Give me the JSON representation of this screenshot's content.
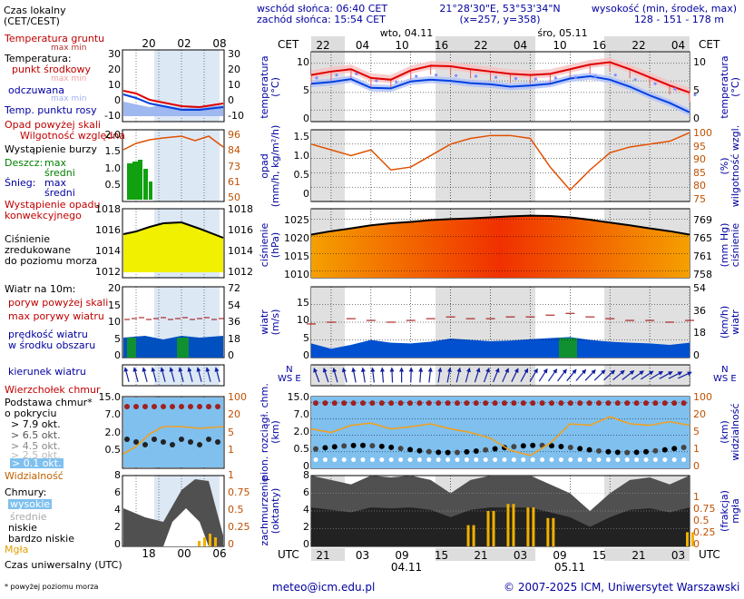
{
  "header": {
    "tz_label": "Czas lokalny\n(CET/CEST)",
    "sunrise": "wschód słońca: 06:40 CET",
    "sunset": "zachód słońca: 15:54 CET",
    "coords": "21°28'30\"E, 53°53'34\"N",
    "grid": "(x=257, y=358)",
    "alt_title": "wysokość (min, środek, max)",
    "alt_values": "128 - 151 - 178 m",
    "cet": "CET",
    "day1": "wto, 04.11",
    "day2": "śro, 05.11",
    "top_hours": [
      "22",
      "04",
      "10",
      "16",
      "22",
      "04",
      "10",
      "16",
      "22",
      "04"
    ],
    "legend_top_hours": [
      "20",
      "02",
      "08"
    ]
  },
  "legend": {
    "temp_ground": "Temperatura gruntu",
    "max_min": "max min",
    "temperatura": "Temperatura:",
    "punkt": "punkt środkowy",
    "maxmin2": "max min",
    "odczuwana": "odczuwana",
    "maxmin3": "max min",
    "dew": "Temp. punktu rosy",
    "opad_skali": "Opad powyżej skali",
    "wilg": "Wilgotność względna",
    "burza": "Wystąpienie burzy",
    "deszcz": "Deszcz:",
    "snieg": "Śnieg:",
    "max": "max",
    "sredni": "średni",
    "wyst_opadu": "Wystąpienie opadu\nkonwekcyjnego",
    "cisnienie": "Ciśnienie\nzredukowane\ndo poziomu morza",
    "wiatr10": "Wiatr na 10m:",
    "poryw_skali": "poryw powyżej skali",
    "max_porywy": "max porywy wiatru",
    "predkosc": "prędkość wiatru\nw środku obszaru",
    "kierunek": "kierunek wiatru",
    "wierzcholek": "Wierzchołek chmur",
    "podstawa": "Podstawa chmur*\no pokryciu",
    "okt": [
      "> 7.9 okt.",
      "> 6.5 okt.",
      "> 4.5 okt.",
      "> 2.5 okt.",
      "> 0.1 okt."
    ],
    "widzialnosc": "Widzialność",
    "chmury": "Chmury:",
    "wysokie": "wysokie",
    "srednie": "średnie",
    "niskie": "niskie",
    "bardzo_niskie": "bardzo niskie",
    "mgla": "Mgła",
    "utc_caption": "Czas uniwersalny (UTC)",
    "footnote": "* powyżej poziomu morza",
    "bottom_hours": [
      "18",
      "00",
      "06"
    ]
  },
  "axes": {
    "temperatura": "temperatura\n(°C)",
    "opad": "opad\n(mm/h, kg/m²/h)",
    "wilgotnosc": "(%)\nwilgotność wzgl.",
    "cisnienie": "ciśnienie\n(hPa)",
    "mmhg": "(mm Hg)\nciśnienie",
    "wiatr": "wiatr\n(m/s)",
    "kmh": "(km/h)\nwiatr",
    "chmury": "pion. rozciągł. chm.\n(km)",
    "widzialnosc": "(km)\nwidzialność",
    "zachmurzenie": "zachmurzenie\n(oktanty)",
    "frakcja": "(frakcja)\nmgła",
    "nse": "N\nWS E"
  },
  "footer": {
    "utc": "UTC",
    "hours": [
      "21",
      "03",
      "09",
      "15",
      "21",
      "03",
      "09",
      "15",
      "21",
      "03"
    ],
    "date1": "04.11",
    "date2": "05.11",
    "email": "meteo@icm.edu.pl",
    "copyright": "© 2007-2025 ICM, Uniwersytet Warszawski"
  },
  "panel_ticks": {
    "temp_left": [
      "10",
      "5",
      "0"
    ],
    "temp_right": [
      "10",
      "5",
      "0"
    ],
    "prec_left": [
      "1.5",
      "1.0",
      "0.5",
      "0"
    ],
    "prec_right": [
      "100",
      "95",
      "90",
      "85",
      "80",
      "75"
    ],
    "pres_left": [
      "1025",
      "1020",
      "1015",
      "1010"
    ],
    "pres_right": [
      "769",
      "765",
      "761",
      "758"
    ],
    "wind_left": [
      "15",
      "10",
      "5",
      "0"
    ],
    "wind_right": [
      "54",
      "36",
      "18",
      "0"
    ],
    "cloud_left": [
      "15.0",
      "7.0",
      "2.0",
      "0.5",
      "0"
    ],
    "cloud_right": [
      "100",
      "20",
      "5",
      "1",
      "0"
    ],
    "oct_left": [
      "8",
      "6",
      "4",
      "2",
      "0"
    ],
    "oct_right": [
      "1",
      "0.75",
      "0.5",
      "0.25",
      "0"
    ],
    "lg_temp_left": [
      "30",
      "20",
      "10",
      "0",
      "-10"
    ],
    "lg_temp_right": [
      "30",
      "20",
      "10",
      "0",
      "-10"
    ],
    "lg_prec_left": [
      "2.0",
      "1.5",
      "1.0",
      "0.5"
    ],
    "lg_prec_right": [
      "96",
      "84",
      "73",
      "61",
      "50"
    ],
    "lg_pres_left": [
      "1018",
      "1016",
      "1014",
      "1012"
    ],
    "lg_pres_right": [
      "1018",
      "1016",
      "1014",
      "1012"
    ],
    "lg_wind_left": [
      "20",
      "15",
      "10",
      "5",
      "0"
    ],
    "lg_wind_right": [
      "72",
      "54",
      "36",
      "18",
      "0"
    ],
    "lg_cloud_left": [
      "15.0",
      "7.0",
      "2.0",
      "0.5"
    ],
    "lg_cloud_right": [
      "100",
      "20",
      "5",
      "1"
    ],
    "lg_oct_left": [
      "8",
      "6",
      "4",
      "2",
      "0"
    ],
    "lg_oct_right": [
      "1",
      "0.75",
      "0.5",
      "0.25",
      "0"
    ]
  },
  "colors": {
    "temp": "#e00000",
    "feel": "#0040e0",
    "dew": "#8090ff",
    "humidity": "#e05000",
    "pres_fill_lo": "#f5a000",
    "pres_fill_hi": "#f03000",
    "wind_fill": "#0050d0",
    "cloud_bg": "#7fc0ef",
    "vis": "#f0a020",
    "fog": "#f0b000"
  },
  "chart_data": [
    {
      "type": "line",
      "title": "temperatura",
      "ylabel": "(°C)",
      "ylim": [
        0,
        12
      ],
      "x": [
        "21",
        "00",
        "03",
        "06",
        "09",
        "12",
        "15",
        "18",
        "21",
        "00",
        "03",
        "06",
        "09",
        "12",
        "15",
        "18",
        "21",
        "00",
        "03",
        "06"
      ],
      "series": [
        {
          "name": "temperatura",
          "values": [
            8.0,
            8.6,
            9.0,
            7.5,
            7.2,
            8.8,
            9.6,
            9.5,
            9.0,
            8.6,
            8.2,
            8.0,
            8.2,
            9.0,
            9.8,
            10.2,
            9.0,
            7.6,
            6.2,
            5.0
          ]
        },
        {
          "name": "odczuwana",
          "values": [
            6.5,
            6.8,
            7.3,
            5.8,
            5.7,
            6.9,
            7.2,
            7.0,
            6.6,
            6.4,
            6.0,
            6.2,
            6.5,
            7.4,
            7.8,
            7.2,
            6.0,
            4.5,
            3.2,
            1.6
          ]
        },
        {
          "name": "punkt rosy",
          "values": [
            7.5,
            8.0,
            8.2,
            7.0,
            6.8,
            7.8,
            8.0,
            7.9,
            7.8,
            7.6,
            7.4,
            7.3,
            7.5,
            7.6,
            7.8,
            8.0,
            7.2,
            6.5,
            5.6,
            4.6
          ]
        }
      ]
    },
    {
      "type": "line",
      "title": "wilgotność względna",
      "ylabel": "(%)",
      "ylim": [
        75,
        100
      ],
      "x": [
        "21",
        "00",
        "03",
        "06",
        "09",
        "12",
        "15",
        "18",
        "21",
        "00",
        "03",
        "06",
        "09",
        "12",
        "15",
        "18",
        "21",
        "00",
        "03",
        "06"
      ],
      "series": [
        {
          "name": "wilgotność",
          "values": [
            95,
            93,
            91,
            93,
            86,
            87,
            91,
            95,
            97,
            98,
            98,
            97,
            87,
            79,
            86,
            92,
            94,
            95,
            96,
            99
          ]
        }
      ]
    },
    {
      "type": "area",
      "title": "ciśnienie",
      "ylabel": "(hPa)",
      "ylim": [
        1008,
        1028
      ],
      "x": [
        "21",
        "00",
        "03",
        "06",
        "09",
        "12",
        "15",
        "18",
        "21",
        "00",
        "03",
        "06",
        "09",
        "12",
        "15",
        "18",
        "21",
        "00",
        "03",
        "06"
      ],
      "series": [
        {
          "name": "ciśnienie",
          "values": [
            1020.5,
            1021.5,
            1022.3,
            1023.2,
            1023.8,
            1024.2,
            1024.7,
            1025.0,
            1025.2,
            1025.5,
            1025.8,
            1026.0,
            1025.9,
            1025.5,
            1024.8,
            1024.0,
            1023.2,
            1022.3,
            1021.5,
            1020.5
          ]
        }
      ]
    },
    {
      "type": "area",
      "title": "wiatr",
      "ylabel": "(m/s)",
      "ylim": [
        0,
        20
      ],
      "x": [
        "21",
        "00",
        "03",
        "06",
        "09",
        "12",
        "15",
        "18",
        "21",
        "00",
        "03",
        "06",
        "09",
        "12",
        "15",
        "18",
        "21",
        "00",
        "03",
        "06"
      ],
      "series": [
        {
          "name": "prędkość",
          "values": [
            4.0,
            2.5,
            3.6,
            5.0,
            4.2,
            4.0,
            4.5,
            5.4,
            5.0,
            4.6,
            4.8,
            5.2,
            5.5,
            5.8,
            5.0,
            4.5,
            4.2,
            4.0,
            3.6,
            4.2
          ]
        },
        {
          "name": "max porywy",
          "values": [
            9.5,
            10,
            11,
            10.5,
            10,
            10.5,
            11,
            11.5,
            11,
            11,
            11.5,
            11.5,
            12,
            12.5,
            11.5,
            11,
            10.5,
            10.5,
            10,
            10.5
          ]
        }
      ]
    },
    {
      "type": "line",
      "title": "zachmurzenie",
      "ylabel": "(oktanty)",
      "ylim": [
        0,
        8
      ],
      "x": [
        "21",
        "00",
        "03",
        "06",
        "09",
        "12",
        "15",
        "18",
        "21",
        "00",
        "03",
        "06",
        "09",
        "12",
        "15",
        "18",
        "21",
        "00",
        "03",
        "06"
      ],
      "series": [
        {
          "name": "chmury ogółem",
          "values": [
            8,
            7.5,
            7,
            8,
            7.8,
            8,
            7.5,
            6,
            7.5,
            8,
            8,
            8,
            7,
            6,
            4,
            6,
            7.5,
            7.8,
            7,
            8
          ]
        },
        {
          "name": "mgła",
          "values": [
            0,
            0,
            0,
            0,
            0,
            0,
            0,
            0,
            0.3,
            0.5,
            0.6,
            0.55,
            0.4,
            0,
            0,
            0,
            0,
            0,
            0,
            0.2
          ]
        }
      ]
    }
  ]
}
